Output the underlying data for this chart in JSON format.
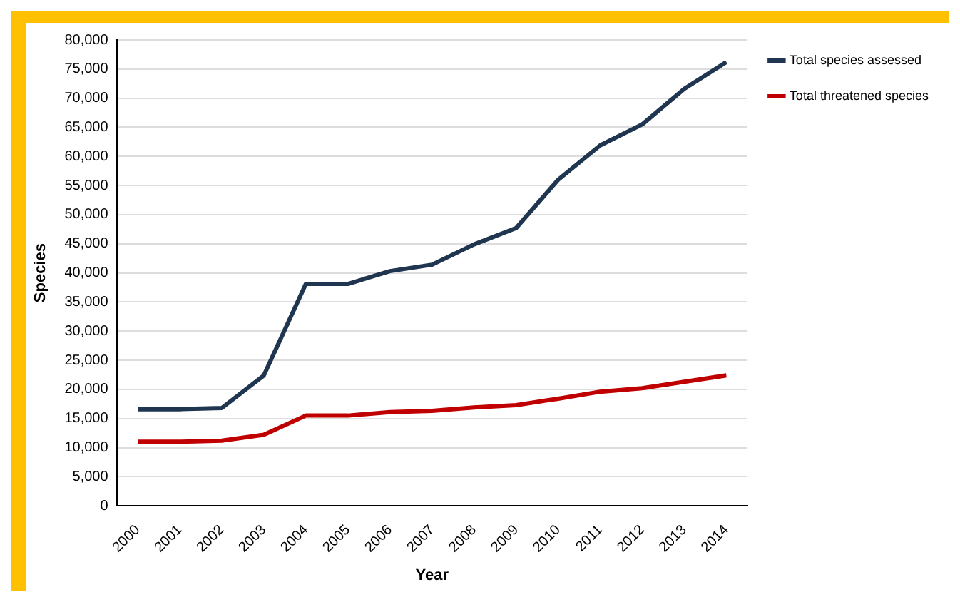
{
  "chart_data": {
    "type": "line",
    "xlabel": "Year",
    "ylabel": "Species",
    "categories": [
      "2000",
      "2001",
      "2002",
      "2003",
      "2004",
      "2005",
      "2006",
      "2007",
      "2008",
      "2009",
      "2010",
      "2011",
      "2012",
      "2013",
      "2014"
    ],
    "series": [
      {
        "name": "Total species assessed",
        "color": "#1f3550",
        "values": [
          16600,
          16600,
          16800,
          22400,
          38100,
          38100,
          40300,
          41400,
          44900,
          47700,
          56000,
          61900,
          65500,
          71600,
          76200
        ]
      },
      {
        "name": "Total threatened species",
        "color": "#c00000",
        "values": [
          11000,
          11000,
          11200,
          12200,
          15500,
          15500,
          16100,
          16300,
          16900,
          17300,
          18400,
          19600,
          20200,
          21300,
          22400
        ]
      }
    ],
    "ylim": [
      0,
      80000
    ],
    "yticks": [
      0,
      {
        "value": 5000,
        "label": "5,000"
      },
      {
        "value": 10000,
        "label": "10,000"
      },
      {
        "value": 15000,
        "label": "15,000"
      },
      {
        "value": 20000,
        "label": "20,000"
      },
      {
        "value": 25000,
        "label": "25,000"
      },
      {
        "value": 30000,
        "label": "30,000"
      },
      {
        "value": 35000,
        "label": "35,000"
      },
      {
        "value": 40000,
        "label": "40,000"
      },
      {
        "value": 45000,
        "label": "45,000"
      },
      {
        "value": 50000,
        "label": "50,000"
      },
      {
        "value": 55000,
        "label": "55,000"
      },
      {
        "value": 60000,
        "label": "60,000"
      },
      {
        "value": 65000,
        "label": "65,000"
      },
      {
        "value": 70000,
        "label": "70,000"
      },
      {
        "value": 75000,
        "label": "75,000"
      },
      {
        "value": 80000,
        "label": "80,000"
      }
    ],
    "grid": "y",
    "legend": "top right",
    "marker": "none",
    "line_style": "solid"
  }
}
